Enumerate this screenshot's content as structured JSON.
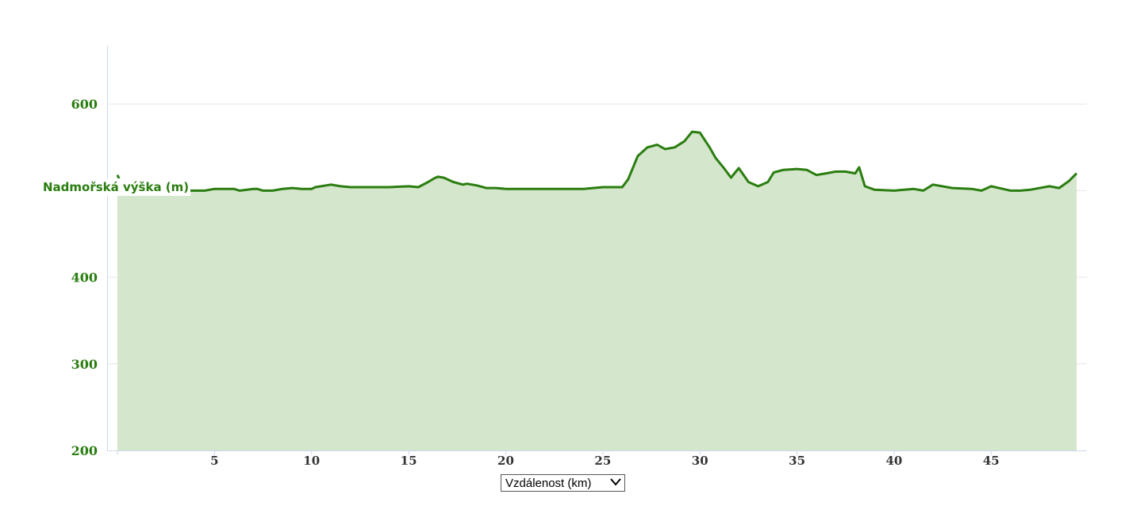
{
  "colors": {
    "line": "#2a7d10",
    "fill": "#d4e6cc",
    "axis_text_y": "#2a7d10",
    "axis_text_x": "#333333",
    "grid": "#e6e6e6",
    "axis": "#ccd6eb"
  },
  "x_selector": {
    "selected": "Vzdálenost (km)",
    "icon": "chevron-down-icon"
  },
  "chart_data": {
    "type": "area",
    "title": "",
    "xlabel": "Vzdálenost (km)",
    "ylabel": "Nadmořská výška (m)",
    "xlim": [
      0,
      49.4
    ],
    "ylim": [
      200,
      670
    ],
    "yticks": [
      200,
      300,
      400,
      500,
      600
    ],
    "ytick_labels": [
      "200",
      "300",
      "400",
      "",
      "600"
    ],
    "xticks": [
      5,
      10,
      15,
      20,
      25,
      30,
      35,
      40,
      45
    ],
    "grid": true,
    "legend": "none",
    "x": [
      0,
      0.3,
      1,
      2,
      3,
      3.8,
      4.5,
      5,
      6,
      6.3,
      7,
      7.2,
      7.5,
      8,
      8.5,
      9,
      9.5,
      10,
      10.2,
      11,
      11.5,
      12,
      13,
      14,
      15,
      15.5,
      16,
      16.3,
      16.5,
      16.8,
      17.3,
      17.8,
      18,
      18.5,
      19,
      19.5,
      20,
      21,
      22,
      23,
      24,
      25,
      26,
      26.3,
      26.8,
      27.3,
      27.8,
      28.2,
      28.7,
      29.2,
      29.6,
      30,
      30.5,
      30.8,
      31.2,
      31.6,
      32,
      32.5,
      33,
      33.5,
      33.8,
      34.3,
      35,
      35.5,
      36,
      36.5,
      37,
      37.5,
      38,
      38.2,
      38.5,
      39,
      40,
      41,
      41.5,
      42,
      43,
      44,
      44.5,
      45,
      46,
      46.5,
      47,
      48,
      48.5,
      49,
      49.4
    ],
    "y": [
      518,
      503,
      503,
      500,
      503,
      500,
      500,
      502,
      502,
      500,
      502,
      502,
      500,
      500,
      502,
      503,
      502,
      502,
      504,
      507,
      505,
      504,
      504,
      504,
      505,
      504,
      510,
      514,
      516,
      515,
      510,
      507,
      508,
      506,
      503,
      503,
      502,
      502,
      502,
      502,
      502,
      504,
      504,
      513,
      540,
      550,
      553,
      548,
      550,
      557,
      568,
      567,
      550,
      538,
      527,
      515,
      526,
      510,
      505,
      510,
      521,
      524,
      525,
      524,
      518,
      520,
      522,
      522,
      520,
      527,
      505,
      501,
      500,
      502,
      500,
      507,
      503,
      502,
      500,
      505,
      500,
      500,
      501,
      505,
      503,
      511,
      520
    ]
  }
}
